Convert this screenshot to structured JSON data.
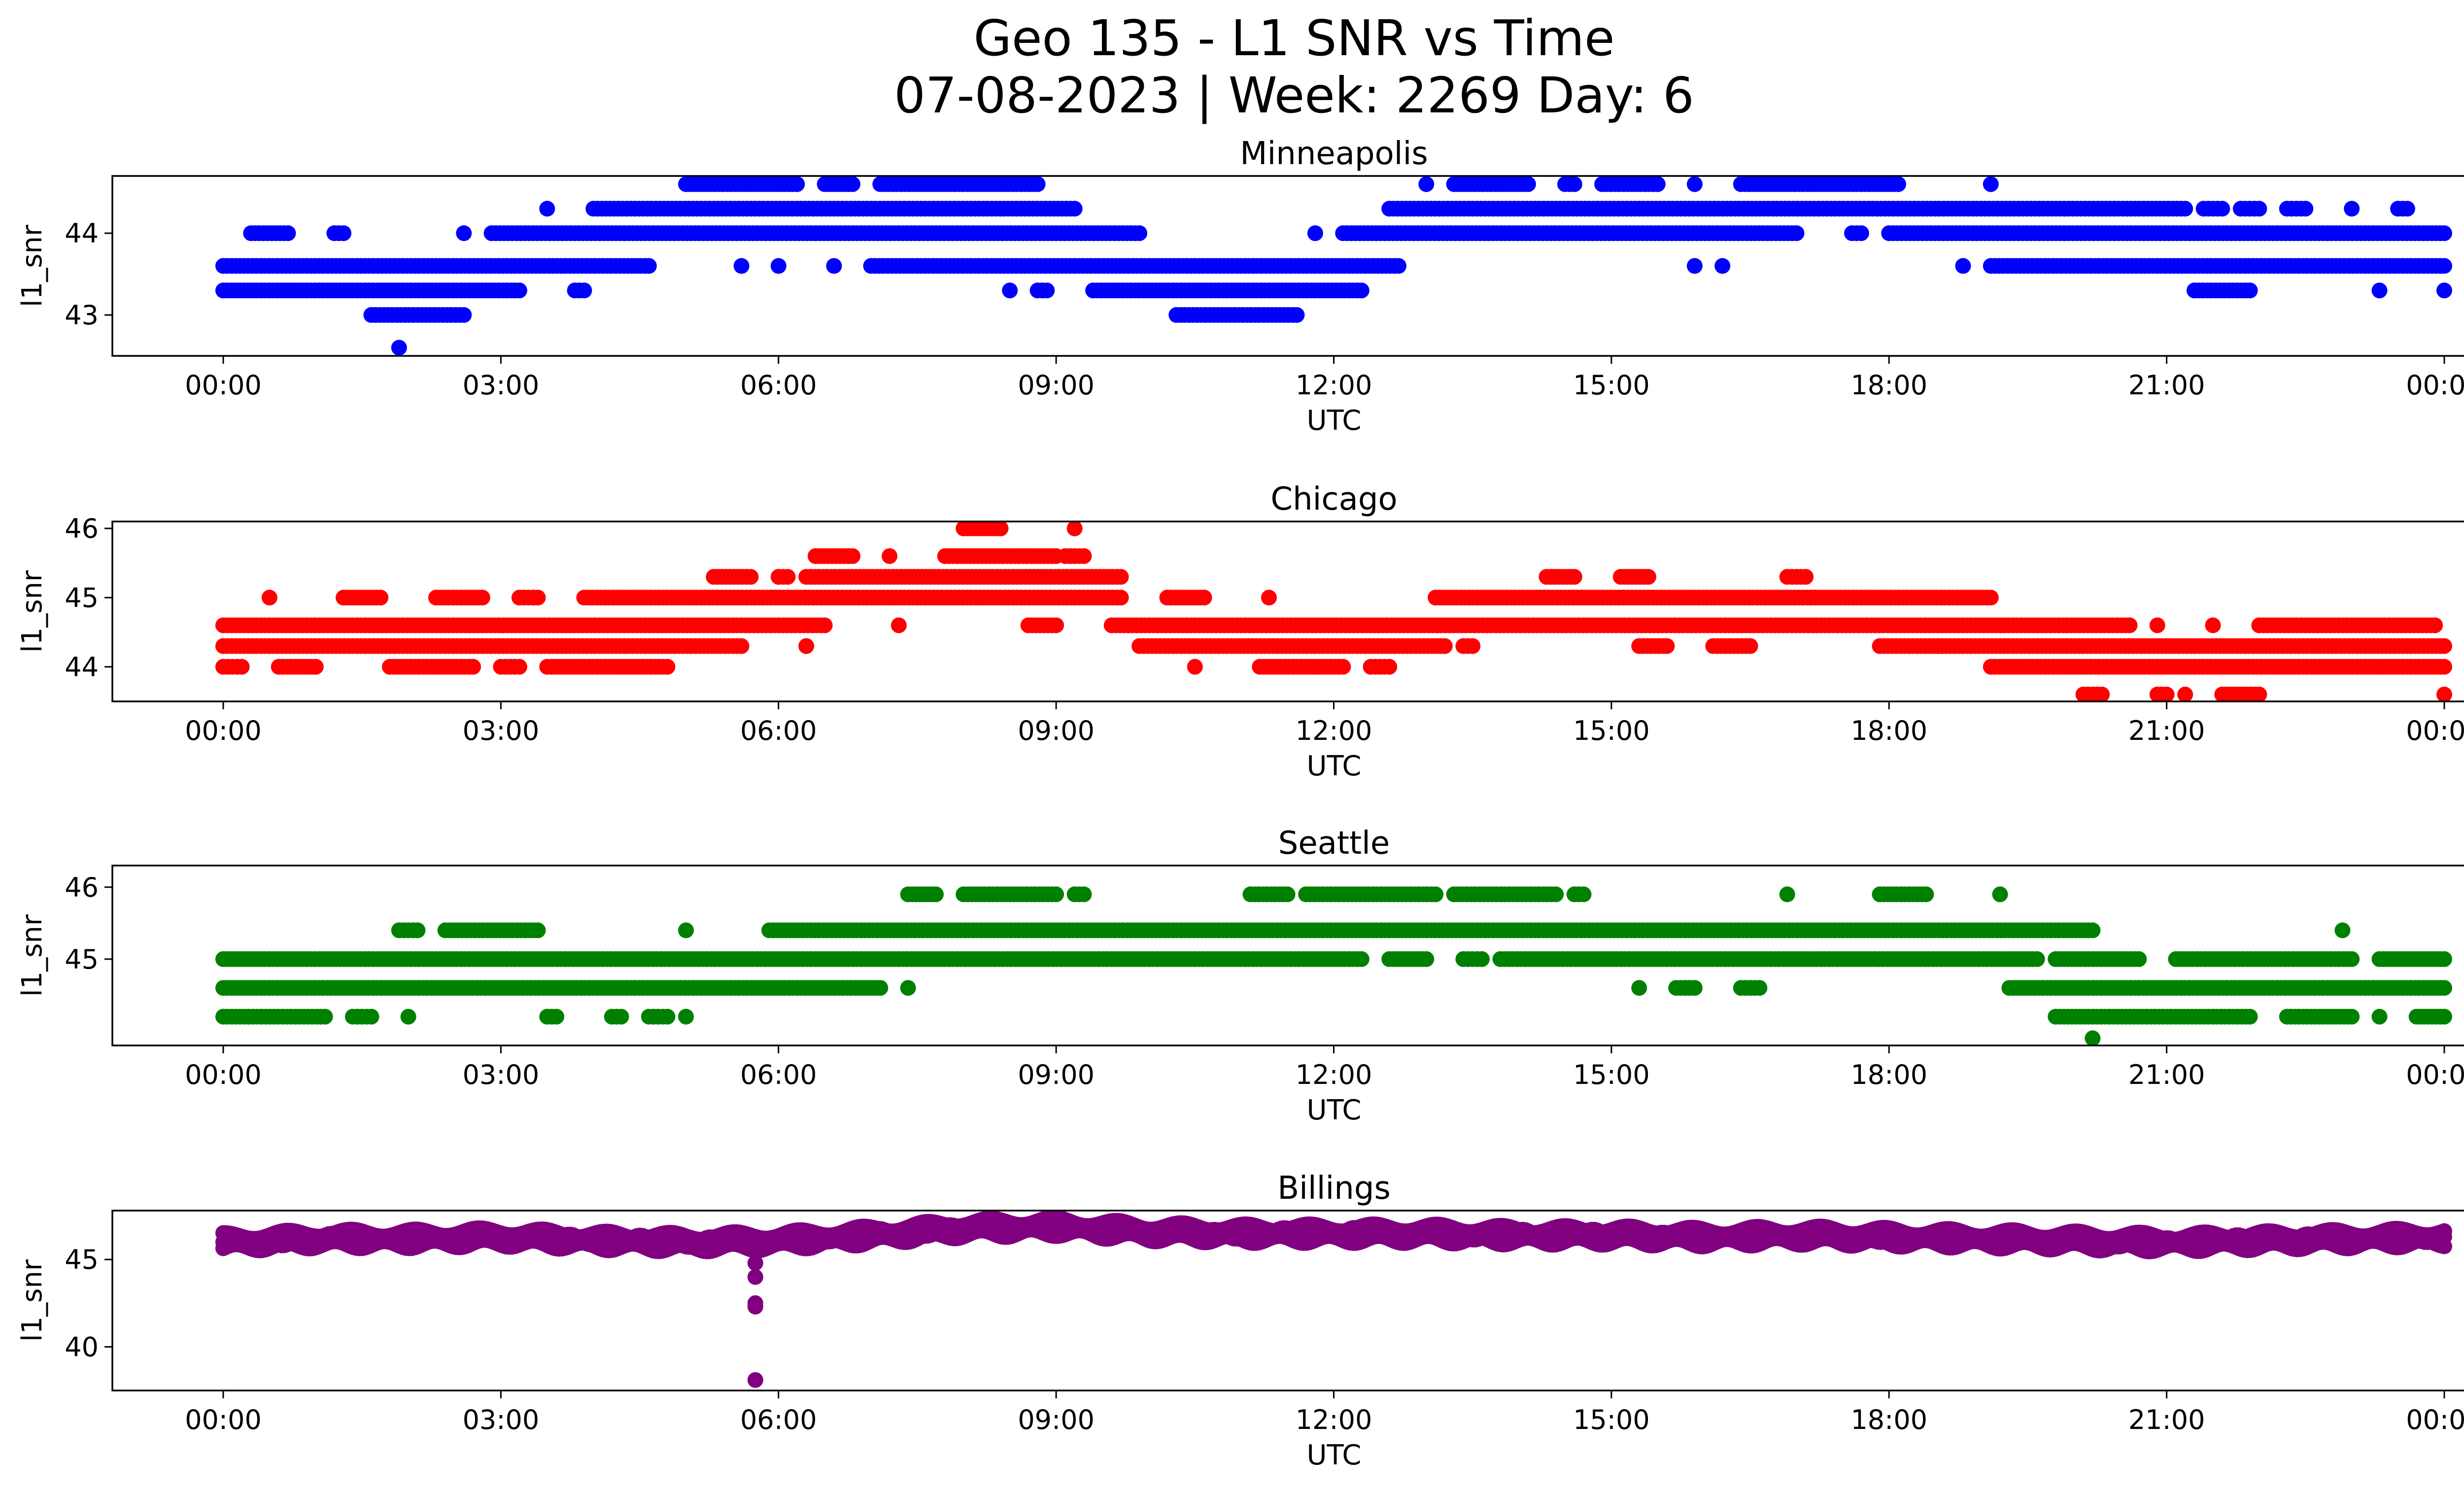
{
  "figure": {
    "title_line1": "Geo 135 - L1 SNR vs Time",
    "title_line2": "07-08-2023 | Week: 2269 Day: 6"
  },
  "chart_data": [
    {
      "type": "scatter",
      "title": "Minneapolis",
      "xlabel": "UTC",
      "ylabel": "l1_snr",
      "color": "#0000ff",
      "xlim": [
        "00:00",
        "24:00"
      ],
      "x_ticks": [
        "00:00",
        "03:00",
        "06:00",
        "09:00",
        "12:00",
        "15:00",
        "18:00",
        "21:00",
        "00:00"
      ],
      "ylim": [
        42.5,
        44.7
      ],
      "y_ticks": [
        43,
        44
      ],
      "grid": false,
      "x_units": "hours UTC",
      "levels": [
        {
          "y": 42.6,
          "segments": [
            [
              1.9,
              1.9
            ]
          ]
        },
        {
          "y": 43.0,
          "segments": [
            [
              1.6,
              2.6
            ],
            [
              10.3,
              11.6
            ]
          ]
        },
        {
          "y": 43.3,
          "segments": [
            [
              0.0,
              3.2
            ],
            [
              3.8,
              3.9
            ],
            [
              8.5,
              8.5
            ],
            [
              8.8,
              8.9
            ],
            [
              9.4,
              12.3
            ],
            [
              21.3,
              21.9
            ],
            [
              23.3,
              23.3
            ],
            [
              24.0,
              24.0
            ]
          ]
        },
        {
          "y": 43.6,
          "segments": [
            [
              0.0,
              4.6
            ],
            [
              5.6,
              5.6
            ],
            [
              6.0,
              6.0
            ],
            [
              6.6,
              6.6
            ],
            [
              7.0,
              12.7
            ],
            [
              15.9,
              15.9
            ],
            [
              16.2,
              16.2
            ],
            [
              18.8,
              18.8
            ],
            [
              19.1,
              24.0
            ]
          ]
        },
        {
          "y": 44.0,
          "segments": [
            [
              0.3,
              0.7
            ],
            [
              1.2,
              1.3
            ],
            [
              2.6,
              2.6
            ],
            [
              2.9,
              9.9
            ],
            [
              11.8,
              11.8
            ],
            [
              12.1,
              17.0
            ],
            [
              17.6,
              17.7
            ],
            [
              18.0,
              24.0
            ]
          ]
        },
        {
          "y": 44.3,
          "segments": [
            [
              3.5,
              3.5
            ],
            [
              4.0,
              9.2
            ],
            [
              12.6,
              21.2
            ],
            [
              21.4,
              21.6
            ],
            [
              21.8,
              22.0
            ],
            [
              22.3,
              22.5
            ],
            [
              23.0,
              23.0
            ],
            [
              23.5,
              23.6
            ]
          ]
        },
        {
          "y": 44.6,
          "segments": [
            [
              5.0,
              6.2
            ],
            [
              6.5,
              6.8
            ],
            [
              7.1,
              8.8
            ],
            [
              13.0,
              13.0
            ],
            [
              13.3,
              14.1
            ],
            [
              14.5,
              14.6
            ],
            [
              14.9,
              15.5
            ],
            [
              15.9,
              15.9
            ],
            [
              16.4,
              18.1
            ],
            [
              19.1,
              19.1
            ]
          ]
        }
      ]
    },
    {
      "type": "scatter",
      "title": "Chicago",
      "xlabel": "UTC",
      "ylabel": "l1_snr",
      "color": "#ff0000",
      "xlim": [
        "00:00",
        "24:00"
      ],
      "x_ticks": [
        "00:00",
        "03:00",
        "06:00",
        "09:00",
        "12:00",
        "15:00",
        "18:00",
        "21:00",
        "00:00"
      ],
      "ylim": [
        43.5,
        46.1
      ],
      "y_ticks": [
        44,
        45,
        46
      ],
      "grid": false,
      "x_units": "hours UTC",
      "levels": [
        {
          "y": 43.6,
          "segments": [
            [
              20.1,
              20.3
            ],
            [
              20.9,
              21.0
            ],
            [
              21.2,
              21.2
            ],
            [
              21.6,
              22.0
            ],
            [
              24.0,
              24.0
            ]
          ]
        },
        {
          "y": 44.0,
          "segments": [
            [
              0.0,
              0.2
            ],
            [
              0.6,
              1.0
            ],
            [
              1.8,
              2.7
            ],
            [
              3.0,
              3.2
            ],
            [
              3.5,
              4.8
            ],
            [
              10.5,
              10.5
            ],
            [
              11.2,
              12.1
            ],
            [
              12.4,
              12.6
            ],
            [
              19.1,
              24.0
            ]
          ]
        },
        {
          "y": 44.3,
          "segments": [
            [
              0.0,
              5.6
            ],
            [
              6.3,
              6.3
            ],
            [
              9.9,
              13.2
            ],
            [
              13.4,
              13.5
            ],
            [
              15.3,
              15.6
            ],
            [
              16.1,
              16.5
            ],
            [
              17.9,
              24.0
            ]
          ]
        },
        {
          "y": 44.6,
          "segments": [
            [
              0.0,
              6.5
            ],
            [
              7.3,
              7.3
            ],
            [
              8.7,
              9.0
            ],
            [
              9.6,
              20.6
            ],
            [
              20.9,
              20.9
            ],
            [
              21.5,
              21.5
            ],
            [
              22.0,
              23.9
            ]
          ]
        },
        {
          "y": 45.0,
          "segments": [
            [
              0.5,
              0.5
            ],
            [
              1.3,
              1.7
            ],
            [
              2.3,
              2.8
            ],
            [
              3.2,
              3.4
            ],
            [
              3.9,
              9.7
            ],
            [
              10.2,
              10.6
            ],
            [
              11.3,
              11.3
            ],
            [
              13.1,
              19.1
            ]
          ]
        },
        {
          "y": 45.3,
          "segments": [
            [
              5.3,
              5.7
            ],
            [
              6.0,
              6.1
            ],
            [
              6.3,
              9.7
            ],
            [
              14.3,
              14.6
            ],
            [
              15.1,
              15.4
            ],
            [
              16.9,
              17.1
            ]
          ]
        },
        {
          "y": 45.6,
          "segments": [
            [
              6.4,
              6.8
            ],
            [
              7.2,
              7.2
            ],
            [
              7.8,
              9.0
            ],
            [
              9.1,
              9.3
            ]
          ]
        },
        {
          "y": 46.0,
          "segments": [
            [
              8.0,
              8.4
            ],
            [
              9.2,
              9.2
            ]
          ]
        }
      ]
    },
    {
      "type": "scatter",
      "title": "Seattle",
      "xlabel": "UTC",
      "ylabel": "l1_snr",
      "color": "#008000",
      "xlim": [
        "00:00",
        "24:00"
      ],
      "x_ticks": [
        "00:00",
        "03:00",
        "06:00",
        "09:00",
        "12:00",
        "15:00",
        "18:00",
        "21:00",
        "00:00"
      ],
      "ylim": [
        43.8,
        46.3
      ],
      "y_ticks": [
        45,
        46
      ],
      "grid": false,
      "x_units": "hours UTC",
      "levels": [
        {
          "y": 43.9,
          "segments": [
            [
              20.2,
              20.2
            ]
          ]
        },
        {
          "y": 44.2,
          "segments": [
            [
              0.0,
              1.1
            ],
            [
              1.4,
              1.6
            ],
            [
              2.0,
              2.0
            ],
            [
              3.5,
              3.6
            ],
            [
              4.2,
              4.3
            ],
            [
              4.6,
              4.8
            ],
            [
              5.0,
              5.0
            ],
            [
              19.8,
              21.9
            ],
            [
              22.3,
              23.0
            ],
            [
              23.3,
              23.3
            ],
            [
              23.7,
              24.0
            ]
          ]
        },
        {
          "y": 44.6,
          "segments": [
            [
              0.0,
              7.1
            ],
            [
              7.4,
              7.4
            ],
            [
              15.3,
              15.3
            ],
            [
              15.7,
              15.9
            ],
            [
              16.4,
              16.6
            ],
            [
              19.3,
              24.0
            ]
          ]
        },
        {
          "y": 45.0,
          "segments": [
            [
              0.0,
              12.3
            ],
            [
              12.6,
              13.0
            ],
            [
              13.4,
              13.6
            ],
            [
              13.8,
              19.6
            ],
            [
              19.8,
              20.7
            ],
            [
              21.1,
              23.0
            ],
            [
              23.3,
              24.0
            ]
          ]
        },
        {
          "y": 45.4,
          "segments": [
            [
              1.9,
              2.1
            ],
            [
              2.4,
              3.4
            ],
            [
              5.0,
              5.0
            ],
            [
              5.9,
              20.2
            ],
            [
              22.9,
              22.9
            ]
          ]
        },
        {
          "y": 45.9,
          "segments": [
            [
              7.4,
              7.7
            ],
            [
              8.0,
              9.0
            ],
            [
              9.2,
              9.3
            ],
            [
              11.1,
              11.5
            ],
            [
              11.7,
              13.1
            ],
            [
              13.3,
              14.4
            ],
            [
              14.6,
              14.7
            ],
            [
              16.9,
              16.9
            ],
            [
              17.9,
              18.4
            ],
            [
              19.2,
              19.2
            ]
          ]
        }
      ]
    },
    {
      "type": "scatter",
      "title": "Billings",
      "xlabel": "UTC",
      "ylabel": "l1_snr",
      "color": "#800080",
      "xlim": [
        "00:00",
        "24:00"
      ],
      "x_ticks": [
        "00:00",
        "03:00",
        "06:00",
        "09:00",
        "12:00",
        "15:00",
        "18:00",
        "21:00",
        "00:00"
      ],
      "ylim": [
        37.5,
        47.8
      ],
      "y_ticks": [
        40,
        45
      ],
      "grid": false,
      "x_units": "hours UTC",
      "dense_band": [
        [
          0.0,
          46.0
        ],
        [
          1.0,
          46.2
        ],
        [
          2.0,
          46.2
        ],
        [
          3.0,
          46.3
        ],
        [
          4.0,
          46.1
        ],
        [
          5.0,
          46.0
        ],
        [
          6.0,
          46.1
        ],
        [
          7.0,
          46.4
        ],
        [
          8.0,
          46.8
        ],
        [
          9.0,
          46.9
        ],
        [
          10.0,
          46.6
        ],
        [
          11.0,
          46.5
        ],
        [
          12.0,
          46.5
        ],
        [
          13.0,
          46.5
        ],
        [
          14.0,
          46.4
        ],
        [
          15.0,
          46.4
        ],
        [
          16.0,
          46.3
        ],
        [
          17.0,
          46.4
        ],
        [
          18.0,
          46.3
        ],
        [
          19.0,
          46.2
        ],
        [
          20.0,
          46.1
        ],
        [
          21.0,
          46.0
        ],
        [
          22.0,
          46.1
        ],
        [
          23.0,
          46.2
        ],
        [
          24.0,
          46.3
        ]
      ],
      "band_spread": 0.9,
      "outliers": [
        [
          5.75,
          44.8
        ],
        [
          5.75,
          44.0
        ],
        [
          5.75,
          42.5
        ],
        [
          5.75,
          42.3
        ],
        [
          5.75,
          38.1
        ]
      ]
    }
  ]
}
